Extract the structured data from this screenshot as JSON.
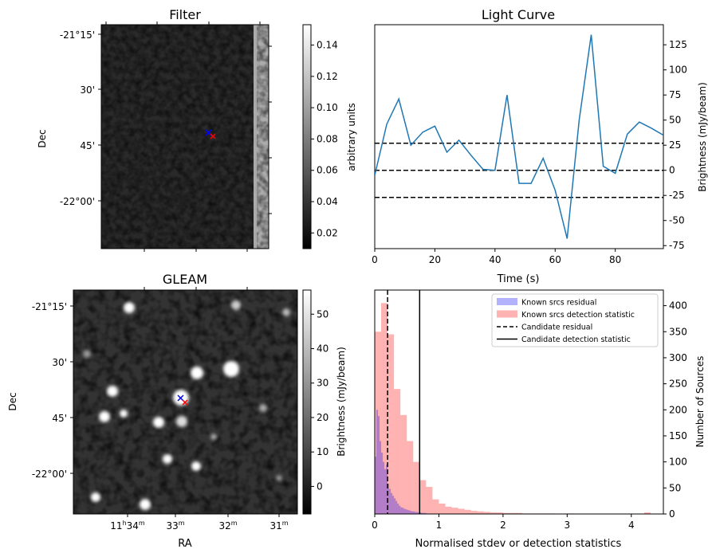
{
  "panels": {
    "filter": {
      "title": "Filter",
      "ylabel": "Dec",
      "dec_ticks": [
        "-21°15'",
        "30'",
        "45'",
        "-22°00'"
      ],
      "colorbar": {
        "label": "arbitrary units",
        "ticks": [
          "0.14",
          "0.12",
          "0.10",
          "0.08",
          "0.06",
          "0.04",
          "0.02"
        ],
        "range": [
          0.01,
          0.153
        ]
      },
      "markers": [
        "blue-x",
        "red-x"
      ]
    },
    "gleam": {
      "title": "GLEAM",
      "xlabel": "RA",
      "ylabel": "Dec",
      "dec_ticks": [
        "-21°15'",
        "30'",
        "45'",
        "-22°00'"
      ],
      "ra_ticks": [
        {
          "main": "11",
          "sup1": "h",
          "mid": "34",
          "sup2": "m"
        },
        {
          "main": "33",
          "sup1": "",
          "mid": "",
          "sup2": "m"
        },
        {
          "main": "32",
          "sup1": "",
          "mid": "",
          "sup2": "m"
        },
        {
          "main": "31",
          "sup1": "",
          "mid": "",
          "sup2": "m"
        }
      ],
      "colorbar": {
        "label": "Brightness (mJy/beam)",
        "ticks": [
          "50",
          "40",
          "30",
          "20",
          "10",
          "0"
        ],
        "range": [
          -8,
          57
        ]
      },
      "markers": [
        "blue-x",
        "red-x"
      ]
    }
  },
  "chart_data": [
    {
      "type": "line",
      "title": "Light Curve",
      "xlabel": "Time (s)",
      "ylabel": "Brightness (mJy/beam)",
      "xlim": [
        0,
        96
      ],
      "ylim": [
        -78,
        145
      ],
      "xticks": [
        0,
        20,
        40,
        60,
        80
      ],
      "yticks": [
        -75,
        -50,
        -25,
        0,
        25,
        50,
        75,
        100,
        125
      ],
      "x": [
        0,
        4,
        8,
        12,
        16,
        20,
        24,
        28,
        32,
        36,
        40,
        44,
        48,
        52,
        56,
        60,
        64,
        68,
        72,
        76,
        80,
        84,
        88,
        92,
        96
      ],
      "y": [
        -5,
        46,
        71,
        25,
        38,
        44,
        18,
        30,
        15,
        1,
        0,
        75,
        -13,
        -13,
        12,
        -20,
        -68,
        50,
        135,
        4,
        -3,
        36,
        48,
        42,
        35
      ],
      "hlines": [
        27,
        0,
        -27
      ],
      "color": "#1f77b4"
    },
    {
      "type": "bar",
      "subtype": "histogram",
      "xlabel": "Normalised stdev or detection statistics",
      "ylabel": "Number of Sources",
      "xlim": [
        0,
        4.5
      ],
      "ylim": [
        0,
        430
      ],
      "xticks": [
        0,
        1,
        2,
        3,
        4
      ],
      "yticks": [
        0,
        50,
        100,
        150,
        200,
        250,
        300,
        350,
        400
      ],
      "bin_width": 0.1,
      "series": [
        {
          "name": "Known srcs residual",
          "color": "#0000ff",
          "opacity": 0.3,
          "bin_width": 0.025,
          "bin_starts": [
            0.0,
            0.025,
            0.05,
            0.075,
            0.1,
            0.125,
            0.15,
            0.175,
            0.2,
            0.225,
            0.25,
            0.275,
            0.3,
            0.325,
            0.35,
            0.375,
            0.4,
            0.425,
            0.45,
            0.475,
            0.5,
            0.525,
            0.55,
            0.575,
            0.6,
            0.625,
            0.65,
            0.675,
            0.7,
            0.725,
            0.75,
            0.775,
            0.8
          ],
          "values": [
            110,
            200,
            188,
            140,
            118,
            100,
            86,
            95,
            58,
            48,
            40,
            35,
            30,
            25,
            20,
            16,
            13,
            12,
            10,
            9,
            8,
            7,
            6,
            5,
            5,
            4,
            4,
            3,
            3,
            2,
            2,
            2,
            1
          ]
        },
        {
          "name": "Known srcs detection statistic",
          "color": "#ff0000",
          "opacity": 0.3,
          "bin_width": 0.1,
          "bin_starts": [
            0.0,
            0.1,
            0.2,
            0.3,
            0.4,
            0.5,
            0.6,
            0.7,
            0.8,
            0.9,
            1.0,
            1.1,
            1.2,
            1.3,
            1.4,
            1.5,
            1.6,
            1.7,
            1.8,
            1.9,
            2.0,
            2.1,
            2.2,
            2.3,
            2.4,
            2.5,
            2.6,
            2.7,
            2.8,
            2.9,
            3.0,
            4.2
          ],
          "values": [
            350,
            405,
            345,
            240,
            190,
            140,
            100,
            65,
            52,
            28,
            20,
            14,
            12,
            10,
            8,
            6,
            5,
            4,
            3,
            3,
            2,
            2,
            2,
            1,
            1,
            1,
            1,
            1,
            0,
            0,
            1,
            3
          ]
        }
      ],
      "vlines": [
        {
          "name": "Candidate residual",
          "x": 0.2,
          "style": "dashed"
        },
        {
          "name": "Candidate detection statistic",
          "x": 0.7,
          "style": "solid"
        }
      ],
      "legend_position": "top-right"
    }
  ]
}
